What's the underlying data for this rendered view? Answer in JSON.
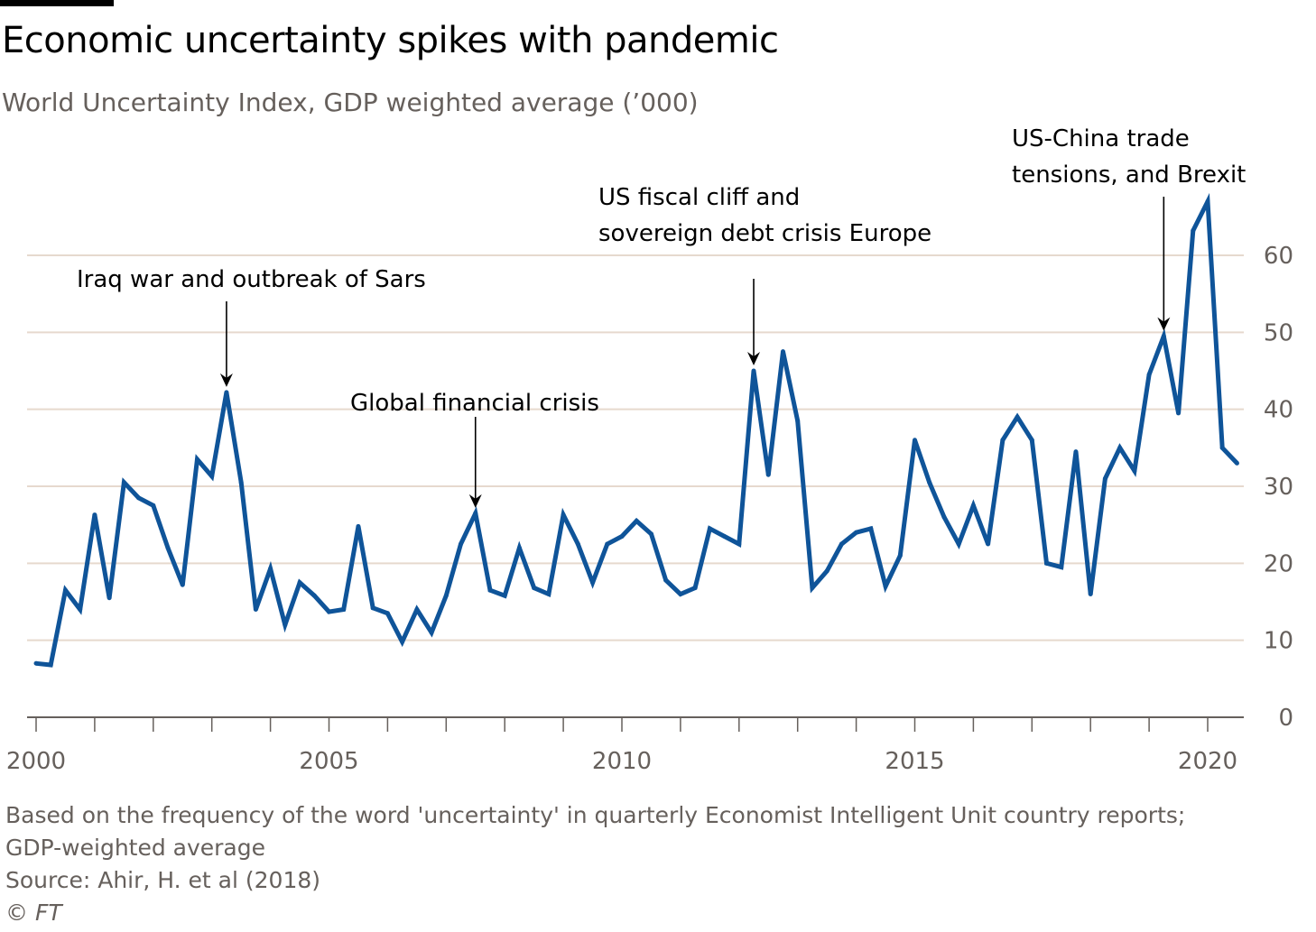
{
  "title": "Economic uncertainty spikes with pandemic",
  "subtitle": "World Uncertainty Index, GDP weighted average (’000)",
  "footer": {
    "note_line1": "Based on the frequency of the word 'uncertainty' in quarterly Economist Intelligent Unit country reports;",
    "note_line2": "GDP-weighted average",
    "source": "Source: Ahir, H. et al (2018)",
    "copyright": "© FT"
  },
  "colors": {
    "line": "#0f5499",
    "grid": "#e6d9ce",
    "axis": "#66605c",
    "text": "#000000"
  },
  "chart_data": {
    "type": "line",
    "title": "Economic uncertainty spikes with pandemic",
    "subtitle": "World Uncertainty Index, GDP weighted average (’000)",
    "ylim": [
      0,
      60
    ],
    "yticks": [
      0,
      10,
      20,
      30,
      40,
      50,
      60
    ],
    "xlim": [
      2000,
      2020.75
    ],
    "xticks_labeled": [
      2000,
      2005,
      2010,
      2015,
      2020
    ],
    "grid": "horizontal",
    "y_axis_side": "right",
    "series": [
      {
        "name": "",
        "x": [
          2000.0,
          2000.25,
          2000.5,
          2000.75,
          2001.0,
          2001.25,
          2001.5,
          2001.75,
          2002.0,
          2002.25,
          2002.5,
          2002.75,
          2003.0,
          2003.25,
          2003.5,
          2003.75,
          2004.0,
          2004.25,
          2004.5,
          2004.75,
          2005.0,
          2005.25,
          2005.5,
          2005.75,
          2006.0,
          2006.25,
          2006.5,
          2006.75,
          2007.0,
          2007.25,
          2007.5,
          2007.75,
          2008.0,
          2008.25,
          2008.5,
          2008.75,
          2009.0,
          2009.25,
          2009.5,
          2009.75,
          2010.0,
          2010.25,
          2010.5,
          2010.75,
          2011.0,
          2011.25,
          2011.5,
          2011.75,
          2012.0,
          2012.25,
          2012.5,
          2012.75,
          2013.0,
          2013.25,
          2013.5,
          2013.75,
          2014.0,
          2014.25,
          2014.5,
          2014.75,
          2015.0,
          2015.25,
          2015.5,
          2015.75,
          2016.0,
          2016.25,
          2016.5,
          2016.75,
          2017.0,
          2017.25,
          2017.5,
          2017.75,
          2018.0,
          2018.25,
          2018.5,
          2018.75,
          2019.0,
          2019.25,
          2019.5,
          2019.75,
          2020.0,
          2020.25,
          2020.5
        ],
        "values": [
          7.0,
          6.8,
          16.5,
          14.0,
          26.3,
          15.5,
          30.5,
          28.5,
          27.5,
          22.0,
          17.2,
          33.5,
          31.3,
          42.2,
          30.5,
          14.0,
          19.3,
          12.0,
          17.5,
          15.8,
          13.7,
          14.0,
          24.8,
          14.2,
          13.5,
          9.8,
          14.0,
          11.0,
          15.8,
          22.5,
          26.5,
          16.5,
          15.8,
          22.0,
          16.8,
          16.0,
          26.3,
          22.5,
          17.5,
          22.5,
          23.5,
          25.5,
          23.8,
          17.8,
          16.0,
          16.8,
          24.5,
          23.5,
          22.5,
          45.0,
          31.5,
          47.5,
          38.5,
          16.8,
          19.0,
          22.5,
          24.0,
          24.5,
          17.0,
          21.0,
          36.0,
          30.5,
          26.0,
          22.5,
          27.5,
          22.5,
          36.0,
          39.0,
          36.0,
          20.0,
          19.5,
          34.5,
          16.0,
          31.0,
          35.0,
          32.0,
          44.5,
          49.5,
          39.5,
          63.2,
          67.0,
          35.0,
          33.0
        ]
      }
    ],
    "annotations": [
      {
        "text_lines": [
          "Iraq war and outbreak of Sars"
        ],
        "x": 2003.25,
        "y": 42.2
      },
      {
        "text_lines": [
          "Global financial crisis"
        ],
        "x": 2007.5,
        "y": 26.5
      },
      {
        "text_lines": [
          "US fiscal cliff and",
          "sovereign debt crisis Europe"
        ],
        "x": 2012.25,
        "y": 45.0
      },
      {
        "text_lines": [
          "US-China trade",
          "tensions, and Brexit"
        ],
        "x": 2019.25,
        "y": 49.5
      }
    ]
  }
}
